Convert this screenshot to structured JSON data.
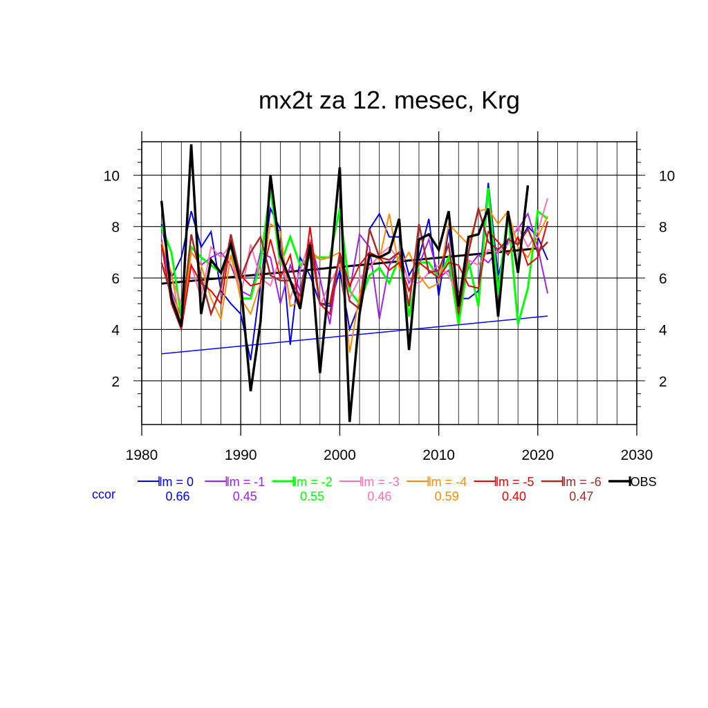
{
  "chart_data": {
    "type": "line",
    "title": "mx2t za 12. mesec, Krg",
    "xlim": [
      1980,
      2030
    ],
    "ylim": [
      0.3,
      11.3
    ],
    "grid": true,
    "legend_position": "bottom",
    "x_ticks": [
      "1980",
      "1990",
      "2000",
      "2010",
      "2020",
      "2030"
    ],
    "y_ticks": [
      "2",
      "4",
      "6",
      "8",
      "10"
    ],
    "years": [
      1982,
      1983,
      1984,
      1985,
      1986,
      1987,
      1988,
      1989,
      1990,
      1991,
      1992,
      1993,
      1994,
      1995,
      1996,
      1997,
      1998,
      1999,
      2000,
      2001,
      2002,
      2003,
      2004,
      2005,
      2006,
      2007,
      2008,
      2009,
      2010,
      2011,
      2012,
      2013,
      2014,
      2015,
      2016,
      2017,
      2018,
      2019,
      2020,
      2021
    ],
    "ccor_label": "ccor",
    "series": [
      {
        "name": "lm = 0",
        "color": "#0000ee",
        "width": 2,
        "ccor": "0.66",
        "values": [
          8.1,
          6.0,
          6.8,
          8.6,
          7.2,
          7.8,
          5.5,
          5.0,
          4.6,
          2.8,
          5.8,
          8.7,
          7.9,
          3.4,
          6.8,
          6.1,
          5.0,
          4.9,
          6.3,
          4.0,
          5.0,
          7.9,
          8.5,
          7.6,
          7.6,
          6.1,
          6.8,
          8.3,
          5.3,
          7.9,
          5.2,
          5.2,
          5.5,
          9.7,
          6.1,
          7.5,
          7.3,
          8.0,
          7.6,
          6.7
        ]
      },
      {
        "name": "lm = -1",
        "color": "#a020f0",
        "width": 2,
        "ccor": "0.45",
        "values": [
          7.5,
          5.5,
          4.5,
          7.0,
          6.5,
          6.8,
          7.0,
          6.5,
          5.5,
          5.3,
          7.0,
          6.8,
          5.0,
          6.5,
          5.5,
          7.5,
          6.0,
          4.2,
          7.0,
          5.5,
          7.7,
          7.2,
          4.4,
          6.5,
          7.0,
          5.8,
          6.5,
          7.5,
          6.0,
          6.3,
          5.2,
          6.4,
          6.9,
          6.6,
          7.1,
          7.5,
          7.9,
          8.5,
          7.2,
          5.4
        ]
      },
      {
        "name": "lm = -2",
        "color": "#00ff00",
        "width": 3,
        "ccor": "0.55",
        "values": [
          8.0,
          7.0,
          4.5,
          7.2,
          6.8,
          6.5,
          6.2,
          7.3,
          5.2,
          5.2,
          6.6,
          9.5,
          6.5,
          7.6,
          6.5,
          6.8,
          6.8,
          6.8,
          8.7,
          5.5,
          5.0,
          6.1,
          6.4,
          5.8,
          6.8,
          4.5,
          6.6,
          6.6,
          6.0,
          6.8,
          4.2,
          6.7,
          4.9,
          9.5,
          5.4,
          8.6,
          4.2,
          5.6,
          8.6,
          8.3
        ]
      },
      {
        "name": "lm = -3",
        "color": "#ff70b0",
        "width": 2,
        "ccor": "0.46",
        "values": [
          6.5,
          6.0,
          5.0,
          6.5,
          5.2,
          7.2,
          6.8,
          7.3,
          5.3,
          7.3,
          6.0,
          5.7,
          6.8,
          5.2,
          6.3,
          7.5,
          4.9,
          5.8,
          6.5,
          5.2,
          6.0,
          6.4,
          6.9,
          7.2,
          6.7,
          5.9,
          5.8,
          6.2,
          6.5,
          6.1,
          5.3,
          6.7,
          6.5,
          7.1,
          7.0,
          7.3,
          8.0,
          7.2,
          7.8,
          9.1
        ]
      },
      {
        "name": "lm = -4",
        "color": "#ff8c00",
        "width": 2,
        "ccor": "0.59",
        "values": [
          7.4,
          6.2,
          4.0,
          7.0,
          6.5,
          5.2,
          4.4,
          6.9,
          5.2,
          4.6,
          5.8,
          8.1,
          7.8,
          4.9,
          5.1,
          7.1,
          6.7,
          6.8,
          7.0,
          3.1,
          5.3,
          7.0,
          6.7,
          8.5,
          6.4,
          7.0,
          6.1,
          5.6,
          5.8,
          8.1,
          7.7,
          7.3,
          8.6,
          8.7,
          8.1,
          8.6,
          7.2,
          6.8,
          7.6,
          8.4
        ]
      },
      {
        "name": "lm = -5",
        "color": "#ee0000",
        "width": 2,
        "ccor": "0.40",
        "values": [
          7.3,
          5.0,
          4.0,
          6.5,
          5.8,
          5.5,
          5.0,
          7.5,
          6.1,
          5.7,
          5.8,
          7.5,
          6.0,
          6.9,
          4.9,
          8.0,
          5.0,
          4.6,
          7.0,
          5.7,
          6.5,
          7.0,
          6.8,
          6.3,
          6.6,
          5.5,
          6.6,
          6.3,
          6.0,
          6.6,
          6.5,
          5.7,
          5.6,
          7.8,
          7.4,
          6.9,
          7.6,
          6.5,
          6.8,
          8.2
        ]
      },
      {
        "name": "lm = -6",
        "color": "#a52a2a",
        "width": 2.5,
        "ccor": "0.47",
        "values": [
          6.6,
          5.3,
          4.2,
          7.7,
          6.0,
          4.6,
          5.6,
          7.7,
          6.0,
          7.0,
          7.6,
          6.1,
          5.9,
          5.9,
          5.3,
          7.4,
          5.0,
          5.0,
          6.9,
          5.1,
          4.8,
          7.9,
          6.8,
          6.7,
          7.0,
          4.9,
          8.1,
          6.2,
          6.3,
          7.3,
          4.6,
          7.0,
          8.7,
          7.4,
          7.1,
          7.5,
          7.3,
          7.9,
          7.0,
          7.4
        ]
      },
      {
        "name": "OBS",
        "color": "#000000",
        "width": 3.5,
        "ccor": "",
        "values": [
          9.0,
          5.2,
          4.1,
          11.2,
          4.6,
          6.7,
          6.2,
          7.3,
          5.8,
          1.6,
          4.3,
          10.0,
          6.9,
          5.9,
          4.8,
          7.3,
          2.3,
          6.2,
          10.3,
          0.4,
          4.6,
          6.9,
          6.8,
          7.0,
          8.3,
          3.2,
          7.5,
          7.7,
          7.1,
          8.6,
          4.9,
          7.6,
          7.7,
          8.7,
          4.5,
          8.6,
          6.2,
          9.6,
          null,
          null
        ]
      }
    ],
    "trend_lines": [
      {
        "name": "blue trend",
        "color": "#0000ee",
        "width": 1.5,
        "x": [
          1982,
          2021
        ],
        "y": [
          3.05,
          4.52
        ]
      },
      {
        "name": "OBS trend",
        "color": "#000000",
        "width": 3,
        "x": [
          1982,
          2020
        ],
        "y": [
          5.78,
          7.15
        ]
      }
    ]
  }
}
